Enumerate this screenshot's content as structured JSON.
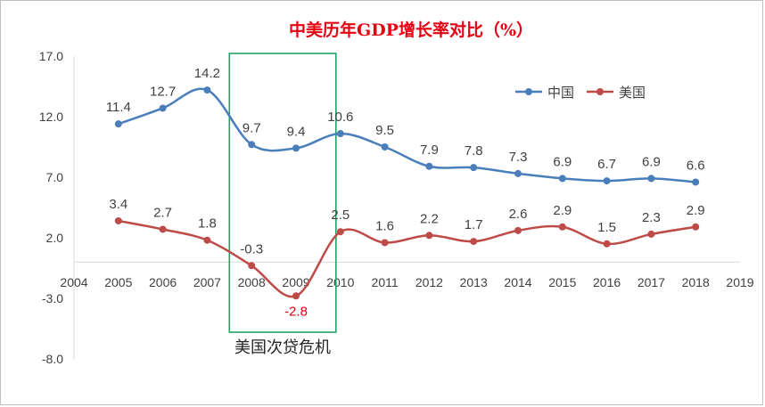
{
  "chart_data": {
    "type": "line",
    "title": "中美历年GDP增长率对比（%）",
    "xlim": [
      2004,
      2019
    ],
    "ylim": [
      -8.0,
      17.0
    ],
    "x_ticks": [
      "2004",
      "2005",
      "2006",
      "2007",
      "2008",
      "2009",
      "2010",
      "2011",
      "2012",
      "2013",
      "2014",
      "2015",
      "2016",
      "2017",
      "2018",
      "2019"
    ],
    "y_ticks": [
      "17.0",
      "12.0",
      "7.0",
      "2.0",
      "-3.0",
      "-8.0"
    ],
    "grid": false,
    "legend_position": "top-right",
    "x": [
      2005,
      2006,
      2007,
      2008,
      2009,
      2010,
      2011,
      2012,
      2013,
      2014,
      2015,
      2016,
      2017,
      2018
    ],
    "series": [
      {
        "name": "中国",
        "color": "#4a7ebb",
        "values": [
          11.4,
          12.7,
          14.2,
          9.7,
          9.4,
          10.6,
          9.5,
          7.9,
          7.8,
          7.3,
          6.9,
          6.7,
          6.9,
          6.6
        ],
        "labels": [
          "11.4",
          "12.7",
          "14.2",
          "9.7",
          "9.4",
          "10.6",
          "9.5",
          "7.9",
          "7.8",
          "7.3",
          "6.9",
          "6.7",
          "6.9",
          "6.6"
        ]
      },
      {
        "name": "美国",
        "color": "#be4b48",
        "values": [
          3.4,
          2.7,
          1.8,
          -0.3,
          -2.8,
          2.5,
          1.6,
          2.2,
          1.7,
          2.6,
          2.9,
          1.5,
          2.3,
          2.9
        ],
        "labels": [
          "3.4",
          "2.7",
          "1.8",
          "-0.3",
          "-2.8",
          "2.5",
          "1.6",
          "2.2",
          "1.7",
          "2.6",
          "2.9",
          "1.5",
          "2.3",
          "2.9"
        ]
      }
    ],
    "annotation": {
      "text": "美国次贷危机",
      "x_range": [
        2007.5,
        2009.9
      ],
      "color": "#21a366"
    },
    "highlight_color": "#e60012"
  }
}
